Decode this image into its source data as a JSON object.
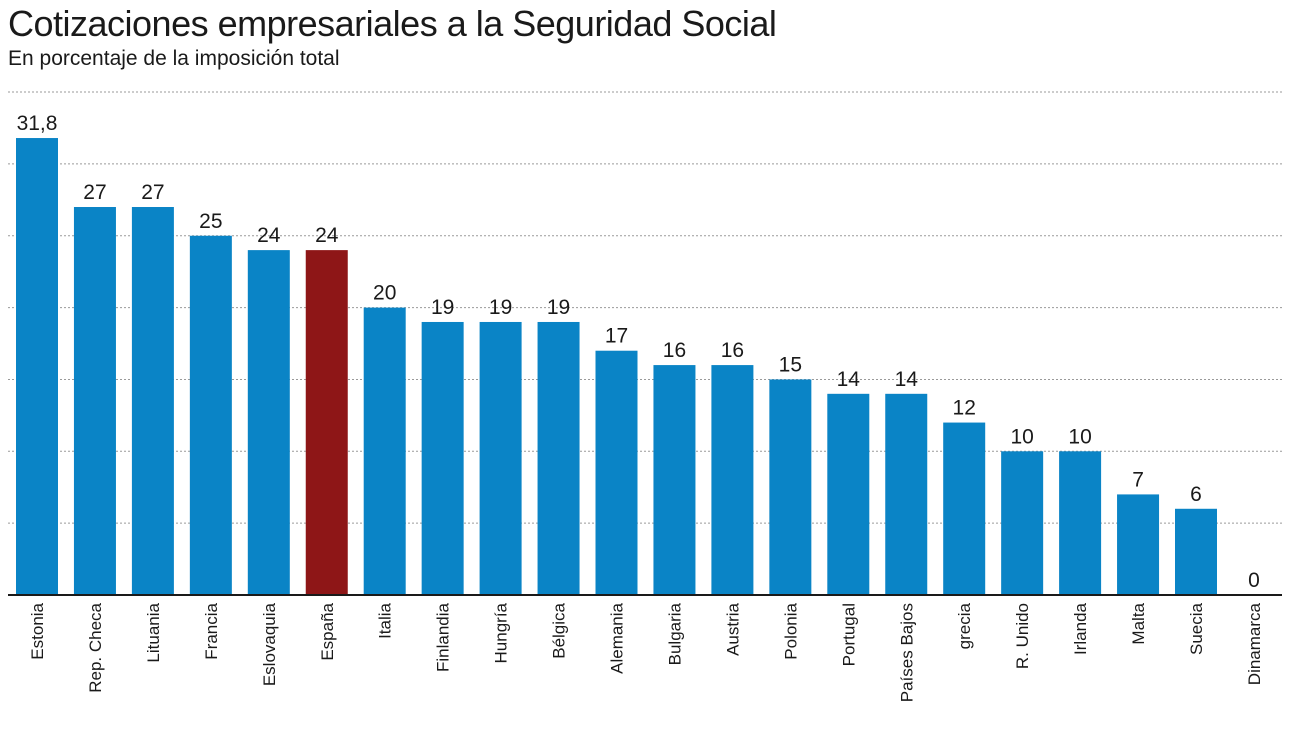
{
  "chart_data": {
    "type": "bar",
    "title": "Cotizaciones empresariales a la Seguridad Social",
    "subtitle": "En porcentaje de la imposición total",
    "categories": [
      "Estonia",
      "Rep. Checa",
      "Lituania",
      "Francia",
      "Eslovaquia",
      "España",
      "Italia",
      "Finlandia",
      "Hungría",
      "Bélgica",
      "Alemania",
      "Bulgaria",
      "Austria",
      "Polonia",
      "Portugal",
      "Países Bajos",
      "grecia",
      "R. Unido",
      "Irlanda",
      "Malta",
      "Suecia",
      "Dinamarca"
    ],
    "values": [
      31.8,
      27,
      27,
      25,
      24,
      24,
      20,
      19,
      19,
      19,
      17,
      16,
      16,
      15,
      14,
      14,
      12,
      10,
      10,
      7,
      6,
      0
    ],
    "value_labels": [
      "31,8",
      "27",
      "27",
      "25",
      "24",
      "24",
      "20",
      "19",
      "19",
      "19",
      "17",
      "16",
      "16",
      "15",
      "14",
      "14",
      "12",
      "10",
      "10",
      "7",
      "6",
      "0"
    ],
    "highlight_index": 5,
    "colors": {
      "bar": "#0a84c6",
      "highlight": "#8e1617",
      "grid": "#9a9a9a",
      "axis": "#1a1a1a"
    },
    "ylim": [
      0,
      35
    ],
    "grid": true,
    "gridlines": [
      5,
      10,
      15,
      20,
      25,
      30,
      35
    ],
    "xlabel": "",
    "ylabel": ""
  }
}
